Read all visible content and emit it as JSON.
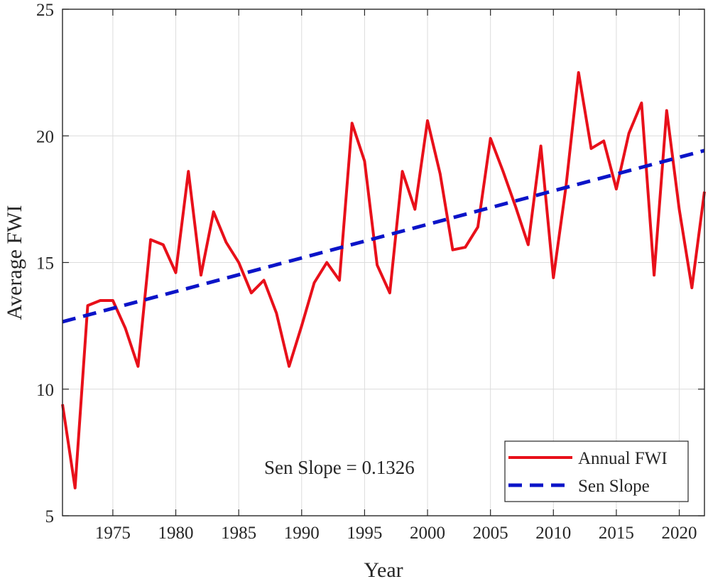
{
  "chart_data": {
    "type": "line",
    "xlabel": "Year",
    "ylabel": "Average FWI",
    "xlim": [
      1971,
      2022
    ],
    "ylim": [
      5,
      25
    ],
    "xticks": [
      1975,
      1980,
      1985,
      1990,
      1995,
      2000,
      2005,
      2010,
      2015,
      2020
    ],
    "yticks": [
      5,
      10,
      15,
      20,
      25
    ],
    "grid": true,
    "legend_position": "bottom-right",
    "annotation": "Sen Slope = 0.1326",
    "series": [
      {
        "name": "Annual FWI",
        "color": "#e8101a",
        "style": "solid",
        "x": [
          1971,
          1972,
          1973,
          1974,
          1975,
          1976,
          1977,
          1978,
          1979,
          1980,
          1981,
          1982,
          1983,
          1984,
          1985,
          1986,
          1987,
          1988,
          1989,
          1990,
          1991,
          1992,
          1993,
          1994,
          1995,
          1996,
          1997,
          1998,
          1999,
          2000,
          2001,
          2002,
          2003,
          2004,
          2005,
          2006,
          2007,
          2008,
          2009,
          2010,
          2011,
          2012,
          2013,
          2014,
          2015,
          2016,
          2017,
          2018,
          2019,
          2020,
          2021,
          2022
        ],
        "values": [
          9.4,
          6.1,
          13.3,
          13.5,
          13.5,
          12.4,
          10.9,
          15.9,
          15.7,
          14.6,
          18.6,
          14.5,
          17.0,
          15.8,
          15.0,
          13.8,
          14.3,
          13.0,
          10.9,
          12.5,
          14.2,
          15.0,
          14.3,
          20.5,
          19.0,
          14.9,
          13.8,
          18.6,
          17.1,
          20.6,
          18.5,
          15.5,
          15.6,
          16.4,
          19.9,
          18.6,
          17.2,
          15.7,
          19.6,
          14.4,
          18.0,
          22.5,
          19.5,
          19.8,
          17.9,
          20.1,
          21.3,
          14.5,
          21.0,
          17.1,
          14.0,
          17.8
        ]
      },
      {
        "name": "Sen Slope",
        "color": "#0b14c8",
        "style": "dashed",
        "x": [
          1971,
          2022
        ],
        "values": [
          12.66,
          19.42
        ]
      }
    ]
  }
}
